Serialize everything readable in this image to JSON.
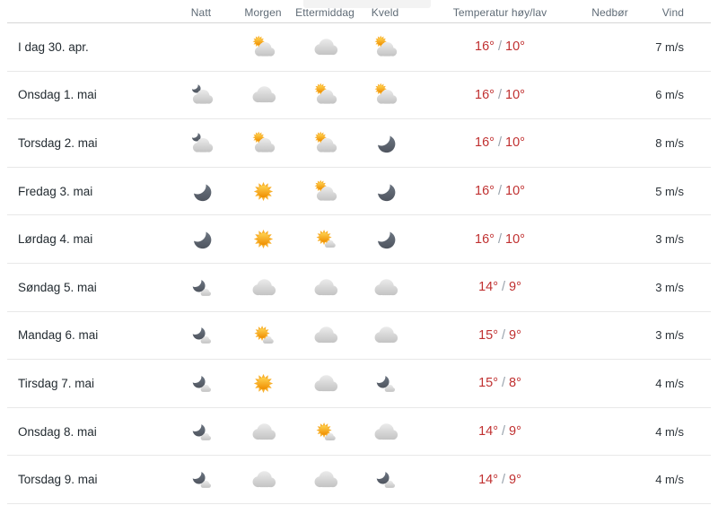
{
  "header": {
    "natt": "Natt",
    "morgen": "Morgen",
    "ettermiddag": "Ettermiddag",
    "kveld": "Kveld",
    "temp": "Temperatur høy/lav",
    "nedbor": "Nedbør",
    "vind": "Vind"
  },
  "colors": {
    "temp_text": "#c03030",
    "slash": "#97a1ab",
    "header_text": "#5f6b76",
    "date_text": "#232b31",
    "sun": "#f8b02c",
    "cloud": "#d6d6d6",
    "moon": "#5d6570"
  },
  "rows": [
    {
      "date": "I dag 30. apr.",
      "natt": null,
      "morgen": "partlycloudy_day",
      "ettermiddag": "cloudy",
      "kveld": "partlycloudy_day",
      "temp_high": "16°",
      "temp_low": "10°",
      "precip": "",
      "wind": "7 m/s"
    },
    {
      "date": "Onsdag 1. mai",
      "natt": "partlycloudy_night",
      "morgen": "cloudy",
      "ettermiddag": "partlycloudy_day",
      "kveld": "partlycloudy_day",
      "temp_high": "16°",
      "temp_low": "10°",
      "precip": "",
      "wind": "6 m/s"
    },
    {
      "date": "Torsdag 2. mai",
      "natt": "partlycloudy_night",
      "morgen": "partlycloudy_day",
      "ettermiddag": "partlycloudy_day",
      "kveld": "clearsky_night",
      "temp_high": "16°",
      "temp_low": "10°",
      "precip": "",
      "wind": "8 m/s"
    },
    {
      "date": "Fredag 3. mai",
      "natt": "clearsky_night",
      "morgen": "clearsky_day",
      "ettermiddag": "partlycloudy_day",
      "kveld": "clearsky_night",
      "temp_high": "16°",
      "temp_low": "10°",
      "precip": "",
      "wind": "5 m/s"
    },
    {
      "date": "Lørdag 4. mai",
      "natt": "clearsky_night",
      "morgen": "clearsky_day",
      "ettermiddag": "fair_day",
      "kveld": "clearsky_night",
      "temp_high": "16°",
      "temp_low": "10°",
      "precip": "",
      "wind": "3 m/s"
    },
    {
      "date": "Søndag 5. mai",
      "natt": "fair_night",
      "morgen": "cloudy",
      "ettermiddag": "cloudy",
      "kveld": "cloudy",
      "temp_high": "14°",
      "temp_low": "9°",
      "precip": "",
      "wind": "3 m/s"
    },
    {
      "date": "Mandag 6. mai",
      "natt": "fair_night",
      "morgen": "fair_day",
      "ettermiddag": "cloudy",
      "kveld": "cloudy",
      "temp_high": "15°",
      "temp_low": "9°",
      "precip": "",
      "wind": "3 m/s"
    },
    {
      "date": "Tirsdag 7. mai",
      "natt": "fair_night",
      "morgen": "clearsky_day",
      "ettermiddag": "cloudy",
      "kveld": "fair_night",
      "temp_high": "15°",
      "temp_low": "8°",
      "precip": "",
      "wind": "4 m/s"
    },
    {
      "date": "Onsdag 8. mai",
      "natt": "fair_night",
      "morgen": "cloudy",
      "ettermiddag": "fair_day",
      "kveld": "cloudy",
      "temp_high": "14°",
      "temp_low": "9°",
      "precip": "",
      "wind": "4 m/s"
    },
    {
      "date": "Torsdag 9. mai",
      "natt": "fair_night",
      "morgen": "cloudy",
      "ettermiddag": "cloudy",
      "kveld": "fair_night",
      "temp_high": "14°",
      "temp_low": "9°",
      "precip": "",
      "wind": "4 m/s"
    }
  ]
}
